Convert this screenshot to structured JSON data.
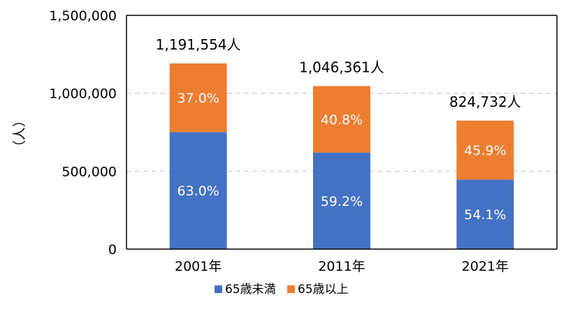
{
  "chart_data": {
    "type": "bar",
    "stacked": true,
    "categories": [
      "2001年",
      "2011年",
      "2021年"
    ],
    "totals": [
      1191554,
      1046361,
      824732
    ],
    "total_labels": [
      "1,191,554人",
      "1,046,361人",
      "824,732人"
    ],
    "series": [
      {
        "name": "65歳未満",
        "color": "#4472C4",
        "percents": [
          63.0,
          59.2,
          54.1
        ],
        "labels": [
          "63.0%",
          "59.2%",
          "54.1%"
        ]
      },
      {
        "name": "65歳以上",
        "color": "#ED7D31",
        "percents": [
          37.0,
          40.8,
          45.9
        ],
        "labels": [
          "37.0%",
          "40.8%",
          "45.9%"
        ]
      }
    ],
    "ylabel": "（人）",
    "ylim": [
      0,
      1500000
    ],
    "yticks": [
      0,
      500000,
      1000000,
      1500000
    ],
    "ytick_labels": [
      "0",
      "500,000",
      "1,000,000",
      "1,500,000"
    ],
    "grid": true,
    "legend_position": "bottom"
  }
}
